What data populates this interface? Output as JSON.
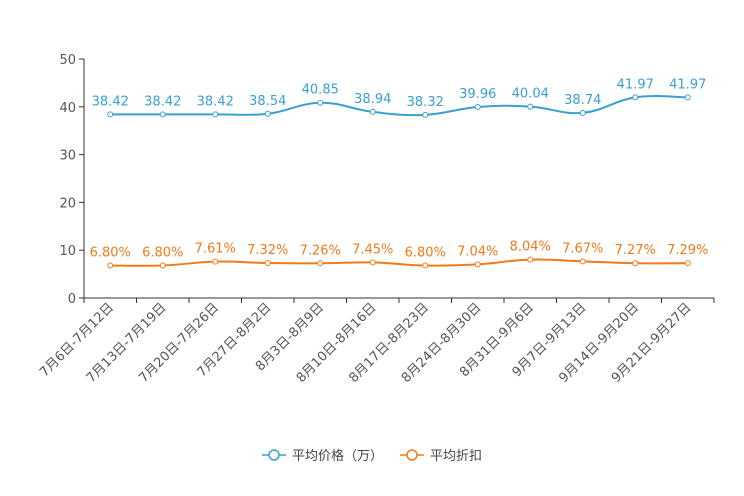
{
  "chart_data": {
    "type": "line",
    "categories": [
      "7月6日-7月12日",
      "7月13日-7月19日",
      "7月20日-7月26日",
      "7月27日-8月2日",
      "8月3日-8月9日",
      "8月10日-8月16日",
      "8月17日-8月23日",
      "8月24日-8月30日",
      "8月31日-9月6日",
      "9月7日-9月13日",
      "9月14日-9月20日",
      "9月21日-9月27日"
    ],
    "series": [
      {
        "name": "平均价格（万）",
        "color": "#3aa0d0",
        "values": [
          38.42,
          38.42,
          38.42,
          38.54,
          40.85,
          38.94,
          38.32,
          39.96,
          40.04,
          38.74,
          41.97,
          41.97
        ],
        "labels": [
          "38.42",
          "38.42",
          "38.42",
          "38.54",
          "40.85",
          "38.94",
          "38.32",
          "39.96",
          "40.04",
          "38.74",
          "41.97",
          "41.97"
        ]
      },
      {
        "name": "平均折扣",
        "color": "#ef7b1a",
        "values": [
          6.8,
          6.8,
          7.61,
          7.32,
          7.26,
          7.45,
          6.8,
          7.04,
          8.04,
          7.67,
          7.27,
          7.29
        ],
        "labels": [
          "6.80%",
          "6.80%",
          "7.61%",
          "7.32%",
          "7.26%",
          "7.45%",
          "6.80%",
          "7.04%",
          "8.04%",
          "7.67%",
          "7.27%",
          "7.29%"
        ]
      }
    ],
    "yticks": [
      "0",
      "10",
      "20",
      "30",
      "40",
      "50"
    ],
    "ylim": [
      0,
      50
    ],
    "title": "",
    "xlabel": "",
    "ylabel": "",
    "legend_position": "bottom-center"
  }
}
